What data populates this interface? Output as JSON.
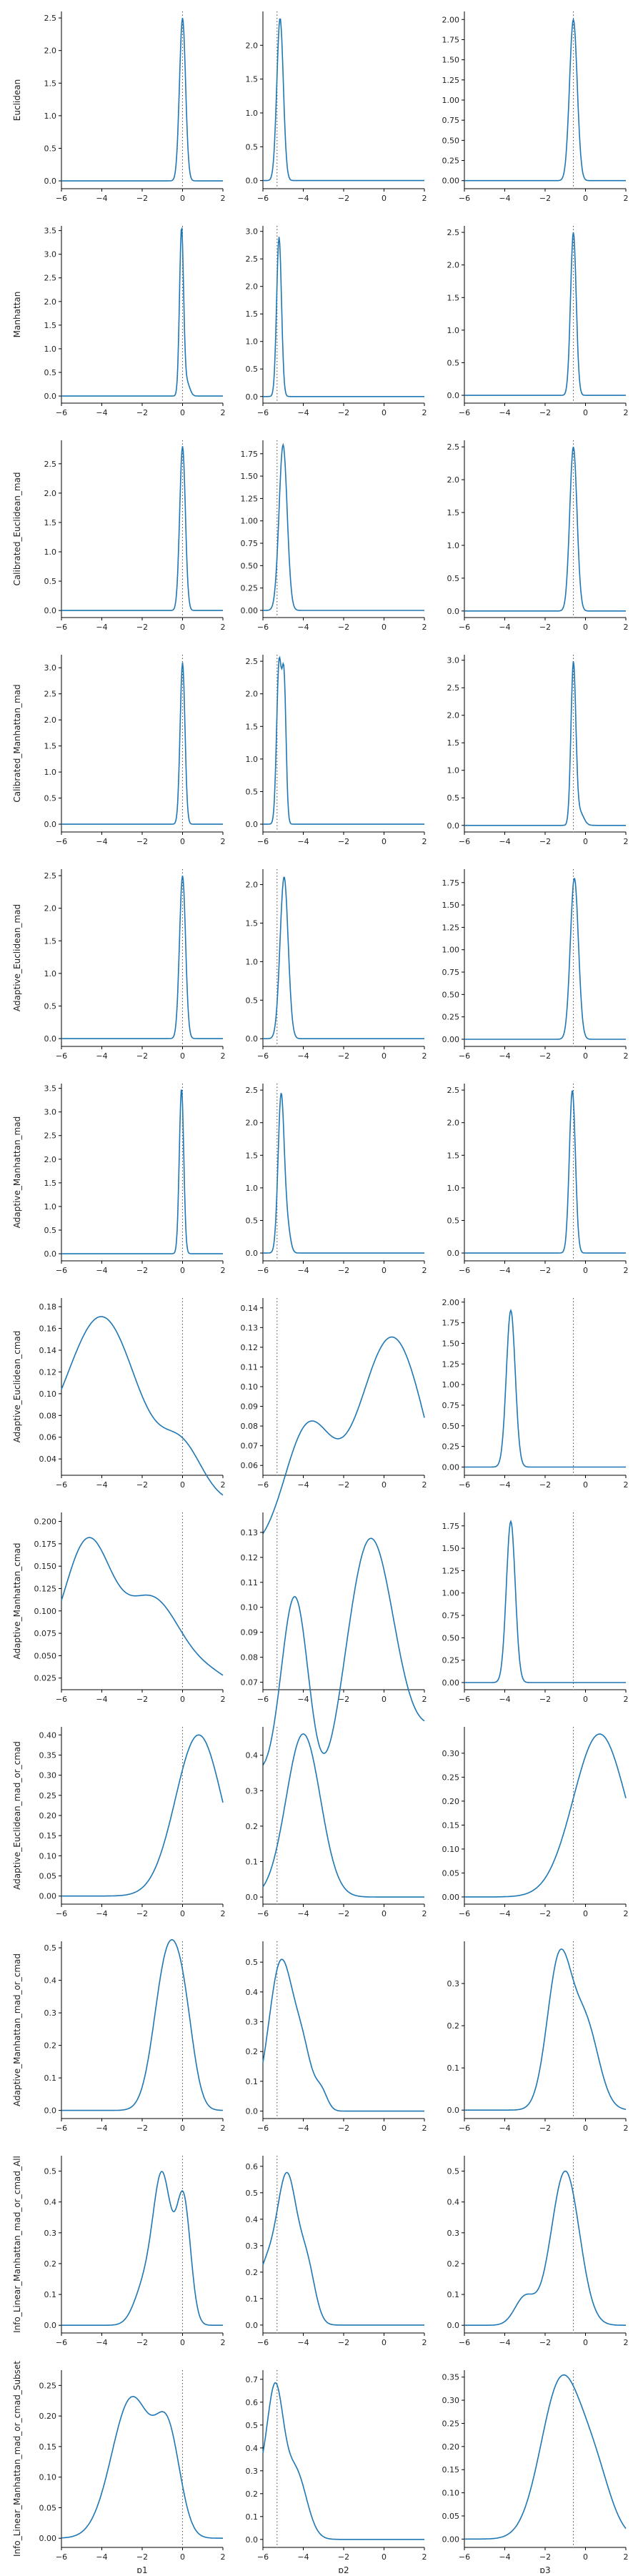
{
  "figure": {
    "rows": [
      "Euclidean",
      "Manhattan",
      "Calibrated_Euclidean_mad",
      "Calibrated_Manhattan_mad",
      "Adaptive_Euclidean_mad",
      "Adaptive_Manhattan_mad",
      "Adaptive_Euclidean_cmad",
      "Adaptive_Manhattan_cmad",
      "Adaptive_Euclidean_mad_or_cmad",
      "Adaptive_Manhattan_mad_or_cmad",
      "Info_Linear_Manhattan_mad_or_cmad_All",
      "Info_Linear_Manhattan_mad_or_cmad_Subset"
    ],
    "cols": [
      "p1",
      "p2",
      "p3"
    ],
    "line_color": "#1f77b4",
    "ref_line_color": "#555555",
    "ref_line_style": "dotted"
  },
  "chart_data": [
    {
      "type": "line",
      "row": 0,
      "col": 0,
      "ylabel": "Euclidean",
      "xlabel": "",
      "xlim": [
        -6,
        2
      ],
      "ylim": [
        -0.12,
        2.6
      ],
      "yticks": [
        0.0,
        0.5,
        1.0,
        1.5,
        2.0,
        2.5
      ],
      "ref_x": 0,
      "peaks": [
        {
          "mu": 0.0,
          "sigma": 0.15,
          "h": 2.5
        }
      ]
    },
    {
      "type": "line",
      "row": 0,
      "col": 1,
      "ylabel": "",
      "xlabel": "",
      "xlim": [
        -6,
        2
      ],
      "ylim": [
        -0.12,
        2.5
      ],
      "yticks": [
        0.0,
        0.5,
        1.0,
        1.5,
        2.0
      ],
      "ref_x": -5.3,
      "peaks": [
        {
          "mu": -5.15,
          "sigma": 0.16,
          "h": 2.4
        }
      ]
    },
    {
      "type": "line",
      "row": 0,
      "col": 2,
      "ylabel": "",
      "xlabel": "",
      "xlim": [
        -6,
        2
      ],
      "ylim": [
        -0.1,
        2.1
      ],
      "yticks": [
        0.0,
        0.25,
        0.5,
        0.75,
        1.0,
        1.25,
        1.5,
        1.75,
        2.0
      ],
      "ref_x": -0.6,
      "peaks": [
        {
          "mu": -0.6,
          "sigma": 0.19,
          "h": 2.0
        }
      ]
    },
    {
      "type": "line",
      "row": 1,
      "col": 0,
      "ylabel": "Manhattan",
      "xlabel": "",
      "xlim": [
        -6,
        2
      ],
      "ylim": [
        -0.15,
        3.6
      ],
      "yticks": [
        0.0,
        0.5,
        1.0,
        1.5,
        2.0,
        2.5,
        3.0,
        3.5
      ],
      "ref_x": 0,
      "peaks": [
        {
          "mu": -0.05,
          "sigma": 0.1,
          "h": 3.5
        },
        {
          "mu": 0.2,
          "sigma": 0.15,
          "h": 0.3
        }
      ]
    },
    {
      "type": "line",
      "row": 1,
      "col": 1,
      "ylabel": "",
      "xlabel": "",
      "xlim": [
        -6,
        2
      ],
      "ylim": [
        -0.12,
        3.1
      ],
      "yticks": [
        0.0,
        0.5,
        1.0,
        1.5,
        2.0,
        2.5,
        3.0
      ],
      "ref_x": -5.3,
      "peaks": [
        {
          "mu": -5.2,
          "sigma": 0.12,
          "h": 2.9
        }
      ]
    },
    {
      "type": "line",
      "row": 1,
      "col": 2,
      "ylabel": "",
      "xlabel": "",
      "xlim": [
        -6,
        2
      ],
      "ylim": [
        -0.12,
        2.6
      ],
      "yticks": [
        0.0,
        0.5,
        1.0,
        1.5,
        2.0,
        2.5
      ],
      "ref_x": -0.6,
      "peaks": [
        {
          "mu": -0.6,
          "sigma": 0.14,
          "h": 2.5
        }
      ]
    },
    {
      "type": "line",
      "row": 2,
      "col": 0,
      "ylabel": "Calibrated_Euclidean_mad",
      "xlabel": "",
      "xlim": [
        -6,
        2
      ],
      "ylim": [
        -0.12,
        2.9
      ],
      "yticks": [
        0.0,
        0.5,
        1.0,
        1.5,
        2.0,
        2.5
      ],
      "ref_x": 0,
      "peaks": [
        {
          "mu": 0.0,
          "sigma": 0.14,
          "h": 2.8
        }
      ]
    },
    {
      "type": "line",
      "row": 2,
      "col": 1,
      "ylabel": "",
      "xlabel": "",
      "xlim": [
        -6,
        2
      ],
      "ylim": [
        -0.08,
        1.9
      ],
      "yticks": [
        0.0,
        0.25,
        0.5,
        0.75,
        1.0,
        1.25,
        1.5,
        1.75
      ],
      "ref_x": -5.3,
      "peaks": [
        {
          "mu": -5.0,
          "sigma": 0.2,
          "h": 1.85
        }
      ]
    },
    {
      "type": "line",
      "row": 2,
      "col": 2,
      "ylabel": "",
      "xlabel": "",
      "xlim": [
        -6,
        2
      ],
      "ylim": [
        -0.1,
        2.6
      ],
      "yticks": [
        0.0,
        0.5,
        1.0,
        1.5,
        2.0,
        2.5
      ],
      "ref_x": -0.6,
      "peaks": [
        {
          "mu": -0.6,
          "sigma": 0.18,
          "h": 2.5
        }
      ]
    },
    {
      "type": "line",
      "row": 3,
      "col": 0,
      "ylabel": "Calibrated_Manhattan_mad",
      "xlabel": "",
      "xlim": [
        -6,
        2
      ],
      "ylim": [
        -0.15,
        3.25
      ],
      "yticks": [
        0.0,
        0.5,
        1.0,
        1.5,
        2.0,
        2.5,
        3.0
      ],
      "ref_x": 0,
      "peaks": [
        {
          "mu": 0.0,
          "sigma": 0.12,
          "h": 3.1
        }
      ]
    },
    {
      "type": "line",
      "row": 3,
      "col": 1,
      "ylabel": "",
      "xlabel": "",
      "xlim": [
        -6,
        2
      ],
      "ylim": [
        -0.12,
        2.6
      ],
      "yticks": [
        0.0,
        0.5,
        1.0,
        1.5,
        2.0,
        2.5
      ],
      "ref_x": -5.3,
      "peaks": [
        {
          "mu": -5.2,
          "sigma": 0.12,
          "h": 2.45
        },
        {
          "mu": -4.95,
          "sigma": 0.1,
          "h": 2.1
        }
      ]
    },
    {
      "type": "line",
      "row": 3,
      "col": 2,
      "ylabel": "",
      "xlabel": "",
      "xlim": [
        -6,
        2
      ],
      "ylim": [
        -0.12,
        3.1
      ],
      "yticks": [
        0.0,
        0.5,
        1.0,
        1.5,
        2.0,
        2.5,
        3.0
      ],
      "ref_x": -0.6,
      "peaks": [
        {
          "mu": -0.6,
          "sigma": 0.12,
          "h": 2.9
        },
        {
          "mu": -0.3,
          "sigma": 0.2,
          "h": 0.25
        }
      ]
    },
    {
      "type": "line",
      "row": 4,
      "col": 0,
      "ylabel": "Adaptive_Euclidean_mad",
      "xlabel": "",
      "xlim": [
        -6,
        2
      ],
      "ylim": [
        -0.12,
        2.6
      ],
      "yticks": [
        0.0,
        0.5,
        1.0,
        1.5,
        2.0,
        2.5
      ],
      "ref_x": 0,
      "peaks": [
        {
          "mu": 0.0,
          "sigma": 0.15,
          "h": 2.5
        }
      ]
    },
    {
      "type": "line",
      "row": 4,
      "col": 1,
      "ylabel": "",
      "xlabel": "",
      "xlim": [
        -6,
        2
      ],
      "ylim": [
        -0.1,
        2.2
      ],
      "yticks": [
        0.0,
        0.5,
        1.0,
        1.5,
        2.0
      ],
      "ref_x": -5.3,
      "peaks": [
        {
          "mu": -4.95,
          "sigma": 0.2,
          "h": 2.1
        }
      ]
    },
    {
      "type": "line",
      "row": 4,
      "col": 2,
      "ylabel": "",
      "xlabel": "",
      "xlim": [
        -6,
        2
      ],
      "ylim": [
        -0.08,
        1.9
      ],
      "yticks": [
        0.0,
        0.25,
        0.5,
        0.75,
        1.0,
        1.25,
        1.5,
        1.75
      ],
      "ref_x": -0.6,
      "peaks": [
        {
          "mu": -0.55,
          "sigma": 0.2,
          "h": 1.8
        }
      ]
    },
    {
      "type": "line",
      "row": 5,
      "col": 0,
      "ylabel": "Adaptive_Manhattan_mad",
      "xlabel": "",
      "xlim": [
        -6,
        2
      ],
      "ylim": [
        -0.15,
        3.6
      ],
      "yticks": [
        0.0,
        0.5,
        1.0,
        1.5,
        2.0,
        2.5,
        3.0,
        3.5
      ],
      "ref_x": 0,
      "peaks": [
        {
          "mu": -0.05,
          "sigma": 0.11,
          "h": 3.5
        }
      ]
    },
    {
      "type": "line",
      "row": 5,
      "col": 1,
      "ylabel": "",
      "xlabel": "",
      "xlim": [
        -6,
        2
      ],
      "ylim": [
        -0.12,
        2.6
      ],
      "yticks": [
        0.0,
        0.5,
        1.0,
        1.5,
        2.0,
        2.5
      ],
      "ref_x": -5.3,
      "peaks": [
        {
          "mu": -5.1,
          "sigma": 0.15,
          "h": 2.4
        },
        {
          "mu": -4.8,
          "sigma": 0.15,
          "h": 0.4
        }
      ]
    },
    {
      "type": "line",
      "row": 5,
      "col": 2,
      "ylabel": "",
      "xlabel": "",
      "xlim": [
        -6,
        2
      ],
      "ylim": [
        -0.12,
        2.6
      ],
      "yticks": [
        0.0,
        0.5,
        1.0,
        1.5,
        2.0,
        2.5
      ],
      "ref_x": -0.6,
      "peaks": [
        {
          "mu": -0.65,
          "sigma": 0.15,
          "h": 2.5
        }
      ]
    },
    {
      "type": "line",
      "row": 6,
      "col": 0,
      "ylabel": "Adaptive_Euclidean_cmad",
      "xlabel": "",
      "xlim": [
        -6,
        2
      ],
      "ylim": [
        0.025,
        0.188
      ],
      "yticks": [
        0.04,
        0.06,
        0.08,
        0.1,
        0.12,
        0.14,
        0.16,
        0.18
      ],
      "ref_x": 0,
      "baseline": 0.0,
      "peaks": [
        {
          "mu": -4.0,
          "sigma": 1.8,
          "h": 0.17
        },
        {
          "mu": 0.0,
          "sigma": 1.0,
          "h": 0.045
        },
        {
          "mu": -8.0,
          "sigma": 1.5,
          "h": 0.03
        }
      ]
    },
    {
      "type": "line",
      "row": 6,
      "col": 1,
      "ylabel": "",
      "xlabel": "",
      "xlim": [
        -6,
        2
      ],
      "ylim": [
        0.055,
        0.145
      ],
      "yticks": [
        0.06,
        0.07,
        0.08,
        0.09,
        0.1,
        0.11,
        0.12,
        0.13,
        0.14
      ],
      "ref_x": -5.3,
      "baseline": 0.0,
      "peaks": [
        {
          "mu": 0.4,
          "sigma": 1.8,
          "h": 0.125
        },
        {
          "mu": -3.8,
          "sigma": 1.2,
          "h": 0.07
        },
        {
          "mu": -8.5,
          "sigma": 2.5,
          "h": 0.02
        }
      ]
    },
    {
      "type": "line",
      "row": 6,
      "col": 2,
      "ylabel": "",
      "xlabel": "",
      "xlim": [
        -6,
        2
      ],
      "ylim": [
        -0.1,
        2.05
      ],
      "yticks": [
        0.0,
        0.25,
        0.5,
        0.75,
        1.0,
        1.25,
        1.5,
        1.75,
        2.0
      ],
      "ref_x": -0.6,
      "peaks": [
        {
          "mu": -3.7,
          "sigma": 0.22,
          "h": 1.9
        }
      ]
    },
    {
      "type": "line",
      "row": 7,
      "col": 0,
      "ylabel": "Adaptive_Manhattan_cmad",
      "xlabel": "",
      "xlim": [
        -6,
        2
      ],
      "ylim": [
        0.012,
        0.21
      ],
      "yticks": [
        0.025,
        0.05,
        0.075,
        0.1,
        0.125,
        0.15,
        0.175,
        0.2
      ],
      "ref_x": 0,
      "baseline": 0.0,
      "peaks": [
        {
          "mu": -4.7,
          "sigma": 1.2,
          "h": 0.17
        },
        {
          "mu": -1.5,
          "sigma": 1.4,
          "h": 0.11
        },
        {
          "mu": 1.5,
          "sigma": 1.3,
          "h": 0.025
        },
        {
          "mu": -8.0,
          "sigma": 1.5,
          "h": 0.04
        }
      ]
    },
    {
      "type": "line",
      "row": 7,
      "col": 1,
      "ylabel": "",
      "xlabel": "",
      "xlim": [
        -6,
        2
      ],
      "ylim": [
        0.067,
        0.138
      ],
      "yticks": [
        0.07,
        0.08,
        0.09,
        0.1,
        0.11,
        0.12,
        0.13
      ],
      "ref_x": -5.3,
      "baseline": 0.0,
      "peaks": [
        {
          "mu": -0.7,
          "sigma": 1.3,
          "h": 0.125
        },
        {
          "mu": -4.4,
          "sigma": 0.7,
          "h": 0.09
        },
        {
          "mu": -7.5,
          "sigma": 2.0,
          "h": 0.04
        },
        {
          "mu": 3.0,
          "sigma": 1.5,
          "h": 0.05
        }
      ]
    },
    {
      "type": "line",
      "row": 7,
      "col": 2,
      "ylabel": "",
      "xlabel": "",
      "xlim": [
        -6,
        2
      ],
      "ylim": [
        -0.08,
        1.9
      ],
      "yticks": [
        0.0,
        0.25,
        0.5,
        0.75,
        1.0,
        1.25,
        1.5,
        1.75
      ],
      "ref_x": -0.6,
      "peaks": [
        {
          "mu": -3.7,
          "sigma": 0.22,
          "h": 1.8
        }
      ]
    },
    {
      "type": "line",
      "row": 8,
      "col": 0,
      "ylabel": "Adaptive_Euclidean_mad_or_cmad",
      "xlabel": "",
      "xlim": [
        -6,
        2
      ],
      "ylim": [
        -0.02,
        0.42
      ],
      "yticks": [
        0.0,
        0.05,
        0.1,
        0.15,
        0.2,
        0.25,
        0.3,
        0.35,
        0.4
      ],
      "ref_x": 0,
      "peaks": [
        {
          "mu": 0.8,
          "sigma": 1.15,
          "h": 0.4
        }
      ]
    },
    {
      "type": "line",
      "row": 8,
      "col": 1,
      "ylabel": "",
      "xlabel": "",
      "xlim": [
        -6,
        2
      ],
      "ylim": [
        -0.02,
        0.48
      ],
      "yticks": [
        0.0,
        0.1,
        0.2,
        0.3,
        0.4
      ],
      "ref_x": -5.3,
      "peaks": [
        {
          "mu": -4.0,
          "sigma": 0.85,
          "h": 0.46
        }
      ]
    },
    {
      "type": "line",
      "row": 8,
      "col": 2,
      "ylabel": "",
      "xlabel": "",
      "xlim": [
        -6,
        2
      ],
      "ylim": [
        -0.015,
        0.355
      ],
      "yticks": [
        0.0,
        0.05,
        0.1,
        0.15,
        0.2,
        0.25,
        0.3
      ],
      "ref_x": -0.6,
      "peaks": [
        {
          "mu": 0.7,
          "sigma": 1.3,
          "h": 0.34
        }
      ]
    },
    {
      "type": "line",
      "row": 9,
      "col": 0,
      "ylabel": "Adaptive_Manhattan_mad_or_cmad",
      "xlabel": "",
      "xlim": [
        -6,
        2
      ],
      "ylim": [
        -0.025,
        0.52
      ],
      "yticks": [
        0.0,
        0.1,
        0.2,
        0.3,
        0.4,
        0.5
      ],
      "ref_x": 0,
      "peaks": [
        {
          "mu": -0.75,
          "sigma": 0.65,
          "h": 0.46
        },
        {
          "mu": 0.1,
          "sigma": 0.5,
          "h": 0.2
        }
      ]
    },
    {
      "type": "line",
      "row": 9,
      "col": 1,
      "ylabel": "",
      "xlabel": "",
      "xlim": [
        -6,
        2
      ],
      "ylim": [
        -0.025,
        0.57
      ],
      "yticks": [
        0.0,
        0.1,
        0.2,
        0.3,
        0.4,
        0.5
      ],
      "ref_x": -5.3,
      "peaks": [
        {
          "mu": -5.1,
          "sigma": 0.6,
          "h": 0.5
        },
        {
          "mu": -4.0,
          "sigma": 0.45,
          "h": 0.17
        },
        {
          "mu": -3.1,
          "sigma": 0.3,
          "h": 0.06
        }
      ]
    },
    {
      "type": "line",
      "row": 9,
      "col": 2,
      "ylabel": "",
      "xlabel": "",
      "xlim": [
        -6,
        2
      ],
      "ylim": [
        -0.02,
        0.4
      ],
      "yticks": [
        0.0,
        0.1,
        0.2,
        0.3
      ],
      "ref_x": -0.6,
      "peaks": [
        {
          "mu": -1.3,
          "sigma": 0.6,
          "h": 0.35
        },
        {
          "mu": 0.0,
          "sigma": 0.65,
          "h": 0.2
        }
      ]
    },
    {
      "type": "line",
      "row": 10,
      "col": 0,
      "ylabel": "Info_Linear_Manhattan_mad_or_cmad_All",
      "xlabel": "",
      "xlim": [
        -6,
        2
      ],
      "ylim": [
        -0.025,
        0.55
      ],
      "yticks": [
        0.0,
        0.1,
        0.2,
        0.3,
        0.4,
        0.5
      ],
      "ref_x": 0,
      "peaks": [
        {
          "mu": -1.0,
          "sigma": 0.45,
          "h": 0.47
        },
        {
          "mu": 0.05,
          "sigma": 0.35,
          "h": 0.4
        },
        {
          "mu": -1.9,
          "sigma": 0.5,
          "h": 0.12
        }
      ]
    },
    {
      "type": "line",
      "row": 10,
      "col": 1,
      "ylabel": "",
      "xlabel": "",
      "xlim": [
        -6,
        2
      ],
      "ylim": [
        -0.03,
        0.64
      ],
      "yticks": [
        0.0,
        0.1,
        0.2,
        0.3,
        0.4,
        0.5,
        0.6
      ],
      "ref_x": -5.3,
      "peaks": [
        {
          "mu": -4.8,
          "sigma": 0.5,
          "h": 0.55
        },
        {
          "mu": -3.8,
          "sigma": 0.4,
          "h": 0.2
        },
        {
          "mu": -5.9,
          "sigma": 0.5,
          "h": 0.2
        }
      ]
    },
    {
      "type": "line",
      "row": 10,
      "col": 2,
      "ylabel": "",
      "xlabel": "",
      "xlim": [
        -6,
        2
      ],
      "ylim": [
        -0.025,
        0.55
      ],
      "yticks": [
        0.0,
        0.1,
        0.2,
        0.3,
        0.4,
        0.5
      ],
      "ref_x": -0.6,
      "peaks": [
        {
          "mu": -1.0,
          "sigma": 0.7,
          "h": 0.5
        },
        {
          "mu": -3.0,
          "sigma": 0.5,
          "h": 0.09
        }
      ]
    },
    {
      "type": "line",
      "row": 11,
      "col": 0,
      "ylabel": "Info_Linear_Manhattan_mad_or_cmad_Subset",
      "xlabel": "p1",
      "xlim": [
        -6,
        2
      ],
      "ylim": [
        -0.015,
        0.275
      ],
      "yticks": [
        0.0,
        0.05,
        0.1,
        0.15,
        0.2,
        0.25
      ],
      "ref_x": 0,
      "peaks": [
        {
          "mu": -2.5,
          "sigma": 1.0,
          "h": 0.23
        },
        {
          "mu": -0.7,
          "sigma": 0.6,
          "h": 0.15
        }
      ]
    },
    {
      "type": "line",
      "row": 11,
      "col": 1,
      "ylabel": "",
      "xlabel": "p2",
      "xlim": [
        -6,
        2
      ],
      "ylim": [
        -0.035,
        0.74
      ],
      "yticks": [
        0.0,
        0.1,
        0.2,
        0.3,
        0.4,
        0.5,
        0.6,
        0.7
      ],
      "ref_x": -5.3,
      "peaks": [
        {
          "mu": -5.4,
          "sigma": 0.4,
          "h": 0.6
        },
        {
          "mu": -4.4,
          "sigma": 0.55,
          "h": 0.3
        },
        {
          "mu": -6.2,
          "sigma": 0.4,
          "h": 0.2
        }
      ]
    },
    {
      "type": "line",
      "row": 11,
      "col": 2,
      "ylabel": "",
      "xlabel": "p3",
      "xlim": [
        -6,
        2
      ],
      "ylim": [
        -0.018,
        0.365
      ],
      "yticks": [
        0.0,
        0.05,
        0.1,
        0.15,
        0.2,
        0.25,
        0.3,
        0.35
      ],
      "ref_x": -0.6,
      "peaks": [
        {
          "mu": -1.2,
          "sigma": 1.0,
          "h": 0.34
        },
        {
          "mu": 0.5,
          "sigma": 0.8,
          "h": 0.12
        }
      ]
    }
  ]
}
